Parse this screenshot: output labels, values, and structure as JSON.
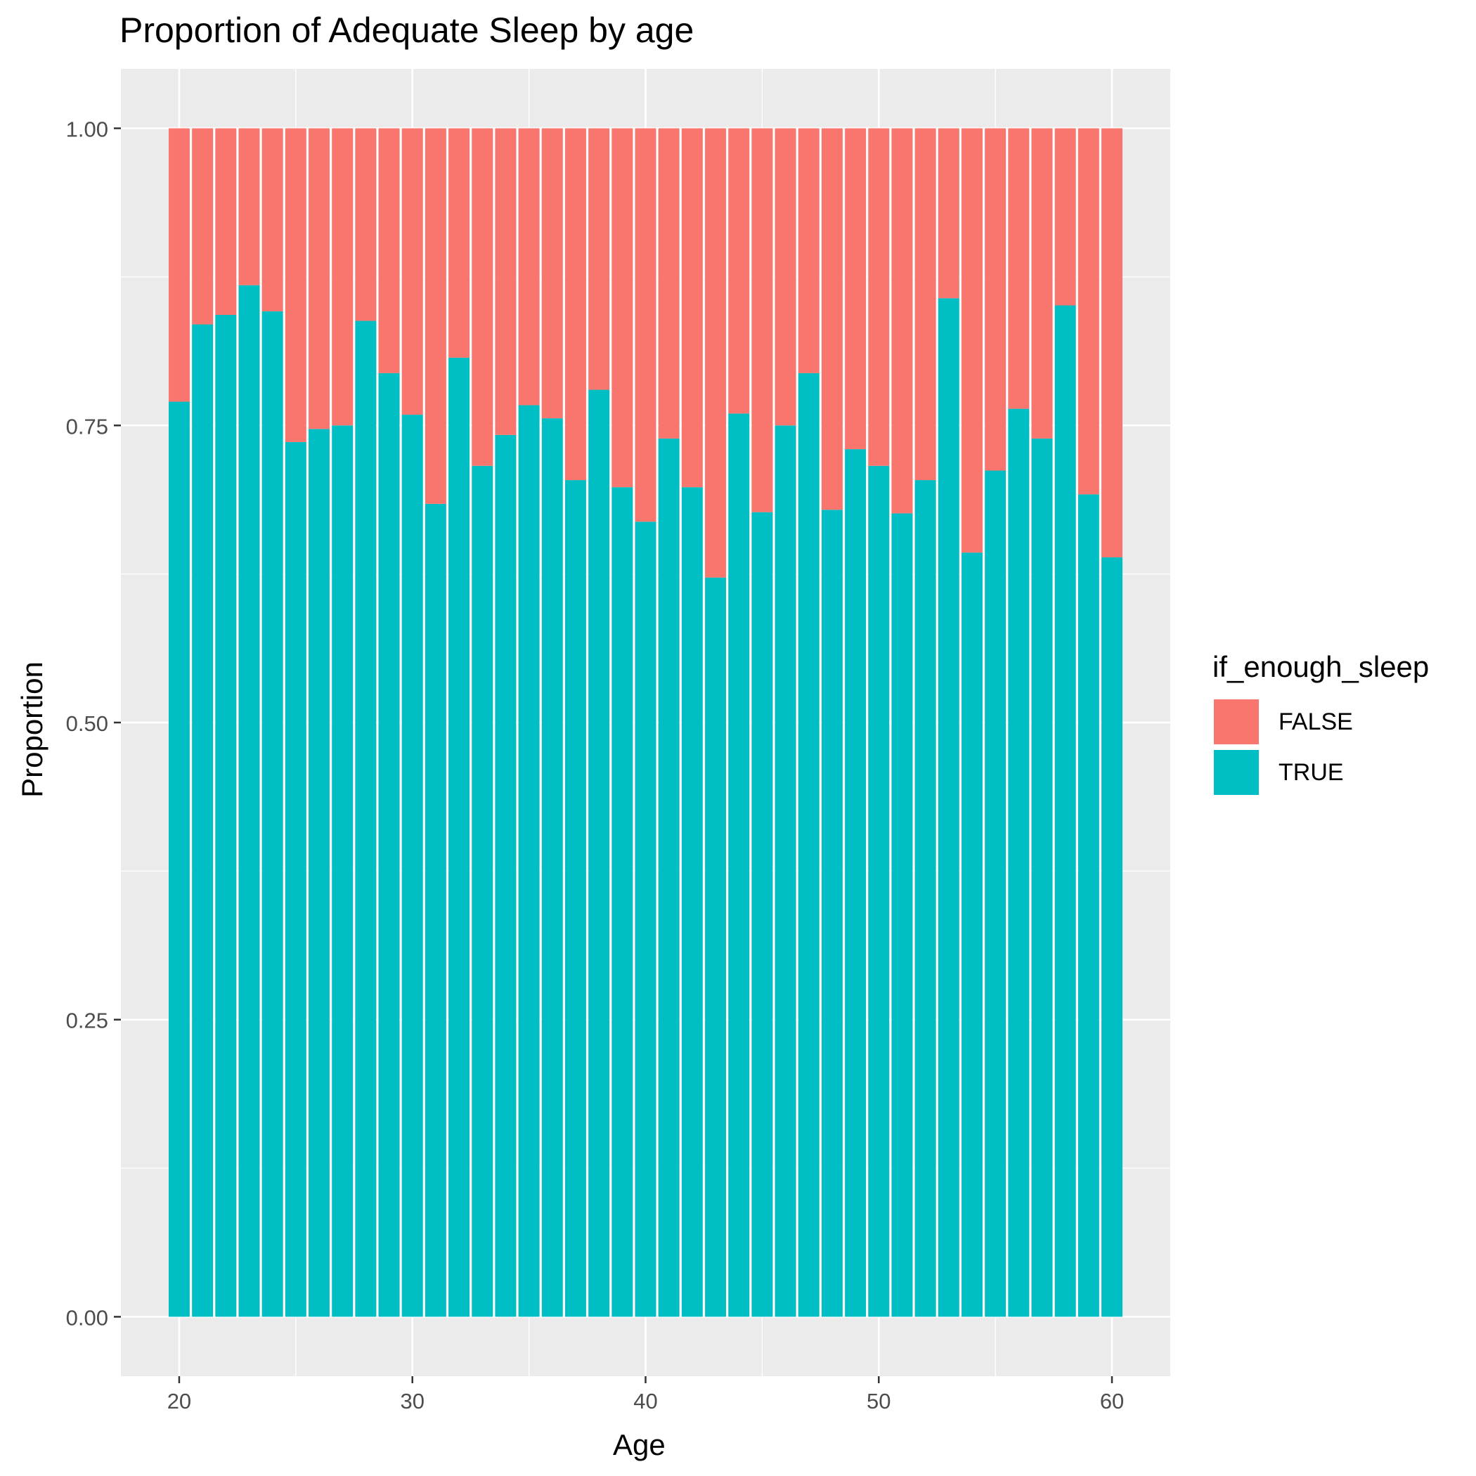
{
  "chart_data": {
    "type": "bar",
    "stacked": true,
    "title": "Proportion of Adequate Sleep by age",
    "xlabel": "Age",
    "ylabel": "Proportion",
    "x": [
      20,
      21,
      22,
      23,
      24,
      25,
      26,
      27,
      28,
      29,
      30,
      31,
      32,
      33,
      34,
      35,
      36,
      37,
      38,
      39,
      40,
      41,
      42,
      43,
      44,
      45,
      46,
      47,
      48,
      49,
      50,
      51,
      52,
      53,
      54,
      55,
      56,
      57,
      58,
      59,
      60
    ],
    "series": [
      {
        "name": "FALSE",
        "color": "#F8766D",
        "values": [
          0.23,
          0.165,
          0.157,
          0.132,
          0.154,
          0.264,
          0.253,
          0.25,
          0.162,
          0.206,
          0.241,
          0.316,
          0.193,
          0.284,
          0.258,
          0.233,
          0.244,
          0.296,
          0.22,
          0.302,
          0.331,
          0.261,
          0.302,
          0.378,
          0.24,
          0.323,
          0.25,
          0.206,
          0.321,
          0.27,
          0.284,
          0.324,
          0.296,
          0.143,
          0.357,
          0.288,
          0.236,
          0.261,
          0.149,
          0.308,
          0.361
        ]
      },
      {
        "name": "TRUE",
        "color": "#00BFC4",
        "values": [
          0.77,
          0.835,
          0.843,
          0.868,
          0.846,
          0.736,
          0.747,
          0.75,
          0.838,
          0.794,
          0.759,
          0.684,
          0.807,
          0.716,
          0.742,
          0.767,
          0.756,
          0.704,
          0.78,
          0.698,
          0.669,
          0.739,
          0.698,
          0.622,
          0.76,
          0.677,
          0.75,
          0.794,
          0.679,
          0.73,
          0.716,
          0.676,
          0.704,
          0.857,
          0.643,
          0.712,
          0.764,
          0.739,
          0.851,
          0.692,
          0.639
        ]
      }
    ],
    "xticks": [
      "20",
      "30",
      "40",
      "50",
      "60"
    ],
    "yticks": [
      "0.00",
      "0.25",
      "0.50",
      "0.75",
      "1.00"
    ],
    "xlim": [
      17.5,
      62.5
    ],
    "ylim": [
      -0.05,
      1.05
    ],
    "grid": true,
    "legend": {
      "title": "if_enough_sleep",
      "position": "right"
    }
  }
}
